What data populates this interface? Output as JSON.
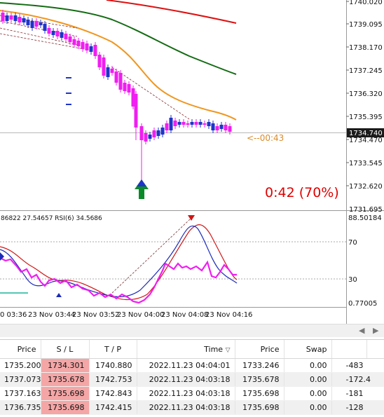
{
  "price_axis": {
    "labels": [
      "1740.020",
      "1739.095",
      "1738.170",
      "1737.245",
      "1736.320",
      "1735.395",
      "1734.470",
      "1733.545",
      "1732.620",
      "1731.695"
    ],
    "current_price": "1734.740"
  },
  "timer": {
    "countdown": "<--00:43",
    "bar_progress": "0:42 (70%)"
  },
  "rsi": {
    "header": "86822 27.54657  RSI(6) 34.5686",
    "axis_labels": [
      "88.50184",
      "70",
      "30",
      "0.77005"
    ]
  },
  "time_axis": {
    "labels": [
      "0 03:36",
      "23 Nov 03:44",
      "23 Nov 03:52",
      "23 Nov 04:00",
      "23 Nov 04:08",
      "23 Nov 04:16"
    ]
  },
  "colors": {
    "ma_red": "#dd1111",
    "ma_green": "#136b13",
    "ma_orange": "#f0961e",
    "candle_bull": "#1f34c8",
    "candle_bear": "#f01ef0",
    "sl_cell": "#f4a6a6",
    "timer_text": "#e00000"
  },
  "icons": {
    "signal_arrow": "green-up-arrow-icon",
    "rsi_marker": "red-down-arrow-icon",
    "sort": "sort-desc-icon",
    "scroll_left": "scroll-left-icon",
    "scroll_right": "scroll-right-icon"
  },
  "orders": {
    "headers": [
      "Price",
      "S / L",
      "T / P",
      "Time",
      "",
      "Price",
      "Swap",
      ""
    ],
    "rows": [
      [
        "1735.200",
        "1734.301",
        "1740.880",
        "2022.11.23 04:04:01",
        "1733.246",
        "0.00",
        "-483"
      ],
      [
        "1737.073",
        "1735.678",
        "1742.753",
        "2022.11.23 04:03:18",
        "1735.678",
        "0.00",
        "-172.4"
      ],
      [
        "1737.163",
        "1735.698",
        "1742.843",
        "2022.11.23 04:03:18",
        "1735.698",
        "0.00",
        "-181"
      ],
      [
        "1736.735",
        "1735.698",
        "1742.415",
        "2022.11.23 04:03:18",
        "1735.698",
        "0.00",
        "-128"
      ]
    ]
  }
}
